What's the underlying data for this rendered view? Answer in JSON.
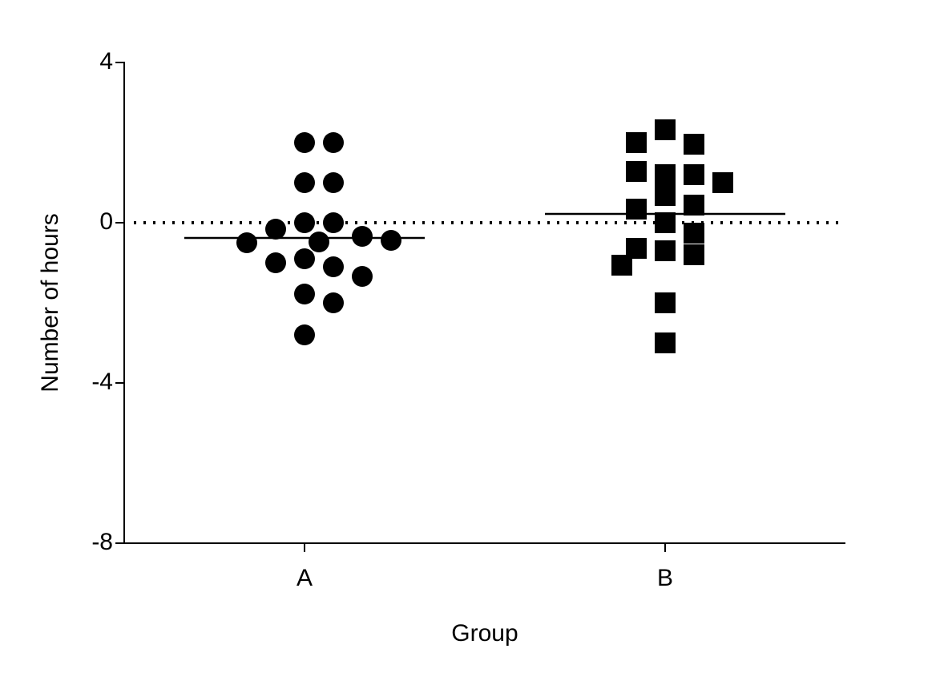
{
  "chart_data": {
    "type": "scatter",
    "x_label": "Group",
    "y_label": "Number of hours",
    "categories": [
      "A",
      "B"
    ],
    "series": [
      {
        "marker": "circle",
        "color": "#000000",
        "mean": -0.38,
        "values": [
          2.0,
          2.0,
          1.0,
          1.0,
          0,
          0,
          -0.16,
          -0.34,
          -0.48,
          -0.5,
          -0.44,
          -0.9,
          -1.1,
          -1.0,
          -1.34,
          -1.78,
          -2.0,
          -2.8
        ]
      },
      {
        "marker": "square",
        "color": "#000000",
        "mean": 0.22,
        "values": [
          2.32,
          1.96,
          2.0,
          1.2,
          1.2,
          1.28,
          1.0,
          0.68,
          0.44,
          0.34,
          0,
          -0.26,
          -0.7,
          -0.64,
          -0.8,
          -1.06,
          -2.0,
          -3.0
        ]
      }
    ],
    "reference_line": 0,
    "ylim": [
      -8,
      4
    ],
    "yticks": [
      -8,
      -4,
      0,
      4
    ]
  }
}
